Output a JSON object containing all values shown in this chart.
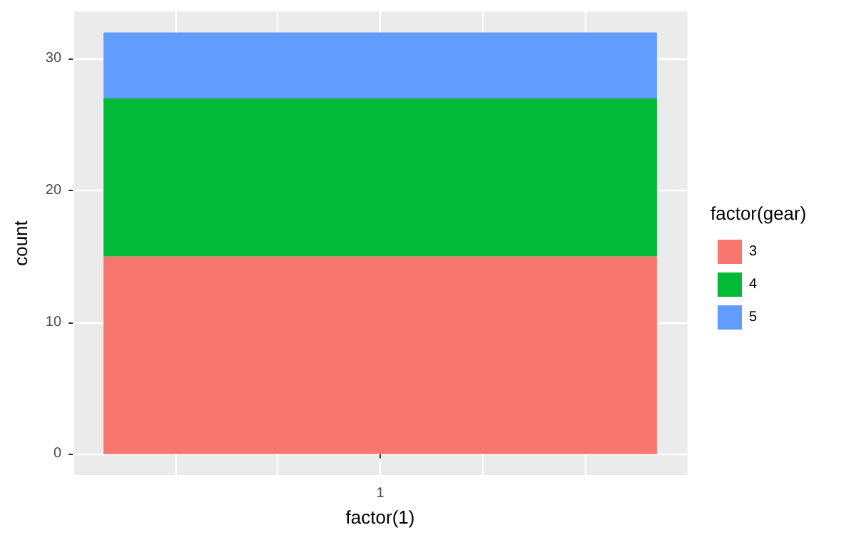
{
  "chart_data": {
    "type": "bar",
    "stacked": true,
    "xlabel": "factor(1)",
    "ylabel": "count",
    "legend_title": "factor(gear)",
    "legend": "right",
    "grid": true,
    "categories": [
      "1"
    ],
    "series": [
      {
        "name": "3",
        "color": "#f8766d",
        "values": [
          15
        ]
      },
      {
        "name": "4",
        "color": "#00ba38",
        "values": [
          12
        ]
      },
      {
        "name": "5",
        "color": "#619cff",
        "values": [
          5
        ]
      }
    ],
    "ylim": [
      -1.6,
      33.6
    ],
    "yticks": [
      0,
      10,
      20,
      30
    ]
  }
}
